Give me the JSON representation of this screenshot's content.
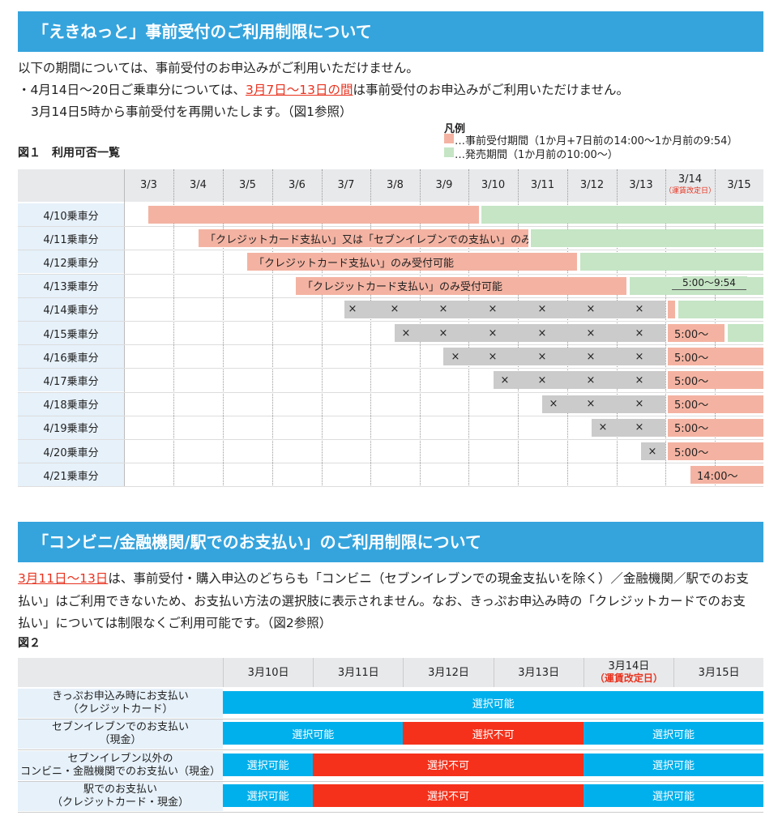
{
  "section1": {
    "title": "「えきねっと」事前受付のご利用制限について",
    "intro": "以下の期間については、事前受付のお申込みがご利用いただけません。",
    "bullet": {
      "prefix": "・4月14日〜20日ご乗車分については、",
      "highlight": "3月7日〜13日の間",
      "suffix": "は事前受付のお申込みがご利用いただけません。"
    },
    "note": "3月14日5時から事前受付を再開いたします。（図1参照）",
    "legend": {
      "title": "凡例",
      "items": [
        "…事前受付期間（1か月+7日前の14:00〜1か月前の9:54）",
        "…発売期間（1か月前の10:00〜）"
      ]
    },
    "figure": {
      "caption": "図１　利用可否一覧",
      "closed_mark": "×",
      "columns": [
        {
          "label": "3/3"
        },
        {
          "label": "3/4"
        },
        {
          "label": "3/5"
        },
        {
          "label": "3/6"
        },
        {
          "label": "3/7"
        },
        {
          "label": "3/8"
        },
        {
          "label": "3/9"
        },
        {
          "label": "3/10"
        },
        {
          "label": "3/11"
        },
        {
          "label": "3/12"
        },
        {
          "label": "3/13"
        },
        {
          "label": "3/14",
          "note": "（運賃改定日）"
        },
        {
          "label": "3/15"
        }
      ],
      "rows": [
        {
          "label": "4/10乗車分"
        },
        {
          "label": "4/11乗車分",
          "text": "「クレジットカード支払い」又は「セブンイレブンでの支払い」のみ受付可能"
        },
        {
          "label": "4/12乗車分",
          "text": "「クレジットカード支払い」のみ受付可能"
        },
        {
          "label": "4/13乗車分",
          "text": "「クレジットカード支払い」のみ受付可能"
        },
        {
          "label": "4/14乗車分",
          "note": "5:00〜9:54"
        },
        {
          "label": "4/15乗車分",
          "text": "5:00〜"
        },
        {
          "label": "4/16乗車分",
          "text": "5:00〜"
        },
        {
          "label": "4/17乗車分",
          "text": "5:00〜"
        },
        {
          "label": "4/18乗車分",
          "text": "5:00〜"
        },
        {
          "label": "4/19乗車分",
          "text": "5:00〜"
        },
        {
          "label": "4/20乗車分",
          "text": "5:00〜"
        },
        {
          "label": "4/21乗車分",
          "text": "14:00〜"
        }
      ]
    }
  },
  "section2": {
    "title": "「コンビニ/金融機関/駅でのお支払い」のご利用制限について",
    "lines": [
      {
        "highlight": "3月11日〜13日",
        "rest": "は、事前受付・購入申込のどちらも「コンビニ（セブンイレブンでの現金支払いを除く）／金融機関／駅でのお支"
      },
      "払い」はご利用できないため、お支払い方法の選択肢に表示されません。なお、きっぷお申込み時の「クレジットカードでのお支",
      "払い」については制限なくご利用可能です。（図2参照）"
    ],
    "figure": {
      "caption": "図２",
      "columns": [
        {
          "label": "3月10日"
        },
        {
          "label": "3月11日"
        },
        {
          "label": "3月12日"
        },
        {
          "label": "3月13日"
        },
        {
          "label": "3月14日",
          "note": "（運賃改定日）"
        },
        {
          "label": "3月15日"
        }
      ],
      "rows": [
        {
          "label": [
            "きっぷお申込み時にお支払い",
            "（クレジットカード）"
          ],
          "cells": [
            "選択可能"
          ]
        },
        {
          "label": [
            "セブンイレブンでのお支払い",
            "（現金）"
          ],
          "cells": [
            "選択可能",
            "選択不可",
            "選択可能"
          ]
        },
        {
          "label": [
            "セブンイレブン以外の",
            "コンビニ・金融機関でのお支払い（現金）"
          ],
          "cells": [
            "選択可能",
            "選択不可",
            "選択可能"
          ]
        },
        {
          "label": [
            "駅でのお支払い",
            "（クレジットカード・現金）"
          ],
          "cells": [
            "選択可能",
            "選択不可",
            "選択可能"
          ]
        }
      ]
    }
  }
}
